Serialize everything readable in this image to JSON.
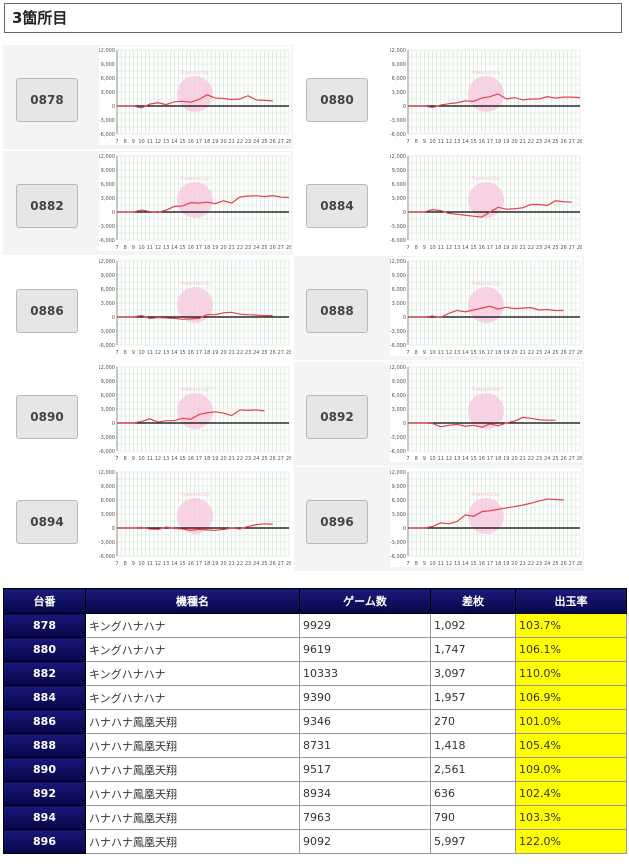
{
  "section_title": "3箇所目",
  "graph": {
    "y_ticks": [
      "12,000",
      "9,000",
      "6,000",
      "3,000",
      "0",
      "-3,000",
      "-6,000"
    ],
    "x_ticks": [
      "7",
      "8",
      "9",
      "10",
      "11",
      "12",
      "13",
      "14",
      "15",
      "16",
      "17",
      "18",
      "19",
      "20",
      "21",
      "22",
      "23",
      "24",
      "25",
      "26",
      "27",
      "28"
    ],
    "watermark": "Powered by",
    "line_color": "#e8404a",
    "zero_color": "#000000",
    "grid_color": "#cfe3cf",
    "watermark_color": "#f7c6dd"
  },
  "machines": [
    {
      "id": "0878",
      "points": [
        0,
        0,
        0,
        -400,
        400,
        700,
        300,
        900,
        1000,
        800,
        1400,
        2400,
        1700,
        1600,
        1400,
        1500,
        2200,
        1300,
        1200,
        1100
      ]
    },
    {
      "id": "0880",
      "points": [
        0,
        0,
        0,
        -300,
        200,
        500,
        700,
        1100,
        1000,
        1700,
        2000,
        2600,
        1500,
        1800,
        1300,
        1500,
        1500,
        2000,
        1700,
        1900,
        1900,
        1800
      ]
    },
    {
      "id": "0882",
      "points": [
        0,
        0,
        0,
        400,
        100,
        -100,
        400,
        1200,
        1300,
        2000,
        1900,
        2100,
        1800,
        2400,
        1900,
        3200,
        3400,
        3500,
        3300,
        3500,
        3200,
        3100
      ]
    },
    {
      "id": "0884",
      "points": [
        0,
        0,
        0,
        500,
        300,
        -300,
        -500,
        -700,
        -900,
        -1100,
        0,
        1000,
        600,
        700,
        900,
        1600,
        1600,
        1400,
        2400,
        2200,
        2100
      ]
    },
    {
      "id": "0886",
      "points": [
        0,
        0,
        0,
        300,
        -300,
        -100,
        -200,
        -300,
        -500,
        -400,
        -300,
        500,
        500,
        900,
        1000,
        600,
        500,
        400,
        300,
        300
      ]
    },
    {
      "id": "0888",
      "points": [
        0,
        0,
        0,
        200,
        -100,
        800,
        1400,
        1100,
        1500,
        1900,
        2300,
        1700,
        2100,
        1800,
        1900,
        2000,
        1500,
        1600,
        1400,
        1400
      ]
    },
    {
      "id": "0890",
      "points": [
        0,
        0,
        0,
        300,
        900,
        200,
        500,
        500,
        1000,
        800,
        1800,
        2200,
        2400,
        2100,
        1600,
        2800,
        2700,
        2800,
        2600
      ]
    },
    {
      "id": "0892",
      "points": [
        0,
        0,
        0,
        -100,
        -800,
        -500,
        -300,
        -700,
        -500,
        -900,
        -200,
        -600,
        0,
        400,
        1200,
        1000,
        700,
        600,
        600
      ]
    },
    {
      "id": "0894",
      "points": [
        0,
        0,
        0,
        100,
        -200,
        -300,
        200,
        -100,
        -200,
        -500,
        -300,
        -400,
        -500,
        -300,
        0,
        -200,
        300,
        700,
        900,
        800
      ]
    },
    {
      "id": "0896",
      "points": [
        0,
        0,
        0,
        300,
        1100,
        900,
        1400,
        2800,
        2500,
        3500,
        3700,
        4000,
        4300,
        4600,
        4900,
        5300,
        5800,
        6200,
        6100,
        6000
      ]
    }
  ],
  "table": {
    "headers": [
      "台番",
      "機種名",
      "ゲーム数",
      "差枚",
      "出玉率"
    ],
    "rows": [
      {
        "num": "878",
        "name": "キングハナハナ",
        "games": "9929",
        "diff": "1,092",
        "rate": "103.7%",
        "hi": true
      },
      {
        "num": "880",
        "name": "キングハナハナ",
        "games": "9619",
        "diff": "1,747",
        "rate": "106.1%",
        "hi": true
      },
      {
        "num": "882",
        "name": "キングハナハナ",
        "games": "10333",
        "diff": "3,097",
        "rate": "110.0%",
        "hi": true
      },
      {
        "num": "884",
        "name": "キングハナハナ",
        "games": "9390",
        "diff": "1,957",
        "rate": "106.9%",
        "hi": true
      },
      {
        "num": "886",
        "name": "ハナハナ鳳凰天翔",
        "games": "9346",
        "diff": "270",
        "rate": "101.0%",
        "hi": true
      },
      {
        "num": "888",
        "name": "ハナハナ鳳凰天翔",
        "games": "8731",
        "diff": "1,418",
        "rate": "105.4%",
        "hi": true
      },
      {
        "num": "890",
        "name": "ハナハナ鳳凰天翔",
        "games": "9517",
        "diff": "2,561",
        "rate": "109.0%",
        "hi": true
      },
      {
        "num": "892",
        "name": "ハナハナ鳳凰天翔",
        "games": "8934",
        "diff": "636",
        "rate": "102.4%",
        "hi": true
      },
      {
        "num": "894",
        "name": "ハナハナ鳳凰天翔",
        "games": "7963",
        "diff": "790",
        "rate": "103.3%",
        "hi": true
      },
      {
        "num": "896",
        "name": "ハナハナ鳳凰天翔",
        "games": "9092",
        "diff": "5,997",
        "rate": "122.0%",
        "hi": true
      }
    ]
  }
}
